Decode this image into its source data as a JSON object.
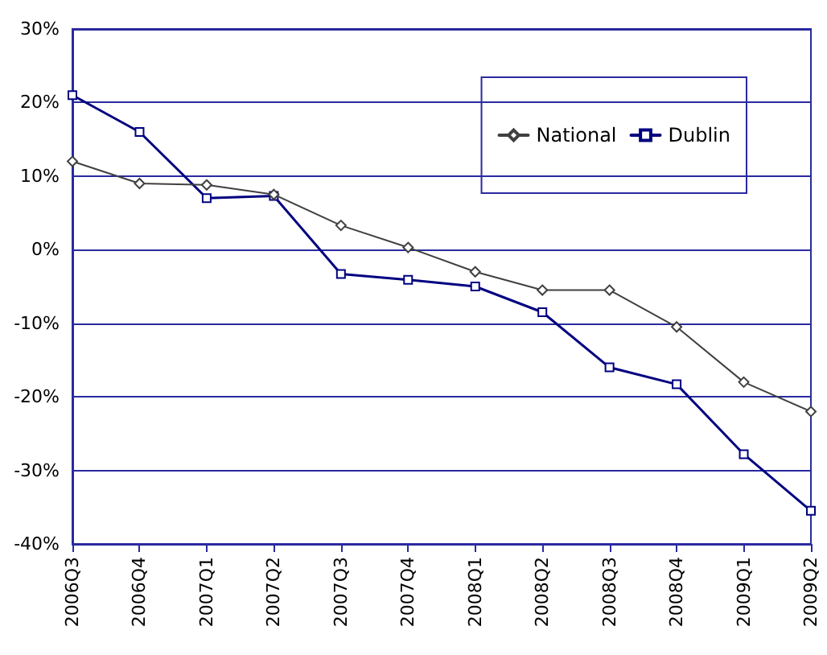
{
  "chart_data": {
    "type": "line",
    "categories": [
      "2006Q3",
      "2006Q4",
      "2007Q1",
      "2007Q2",
      "2007Q3",
      "2007Q4",
      "2008Q1",
      "2008Q2",
      "2008Q3",
      "2008Q4",
      "2009Q1",
      "2009Q2"
    ],
    "series": [
      {
        "name": "National",
        "color": "#404040",
        "marker": "diamond",
        "values": [
          12,
          9,
          8.8,
          7.5,
          3.3,
          0.3,
          -3,
          -5.5,
          -5.5,
          -10.5,
          -18,
          -22
        ]
      },
      {
        "name": "Dublin",
        "color": "#000080",
        "marker": "square",
        "values": [
          21,
          16,
          7,
          7.3,
          -3.3,
          -4.1,
          -5,
          -8.5,
          -16,
          -18.3,
          -27.8,
          -35.5
        ]
      }
    ],
    "ylim": [
      -40,
      30
    ],
    "yticks": [
      {
        "value": -40,
        "label": "-40%"
      },
      {
        "value": -30,
        "label": "-30%"
      },
      {
        "value": -20,
        "label": "-20%"
      },
      {
        "value": -10,
        "label": "-10%"
      },
      {
        "value": 0,
        "label": "0%"
      },
      {
        "value": 10,
        "label": "10%"
      },
      {
        "value": 20,
        "label": "20%"
      },
      {
        "value": 30,
        "label": "30%"
      }
    ],
    "grid": "y",
    "legend": "top right",
    "line_style": "solid"
  }
}
